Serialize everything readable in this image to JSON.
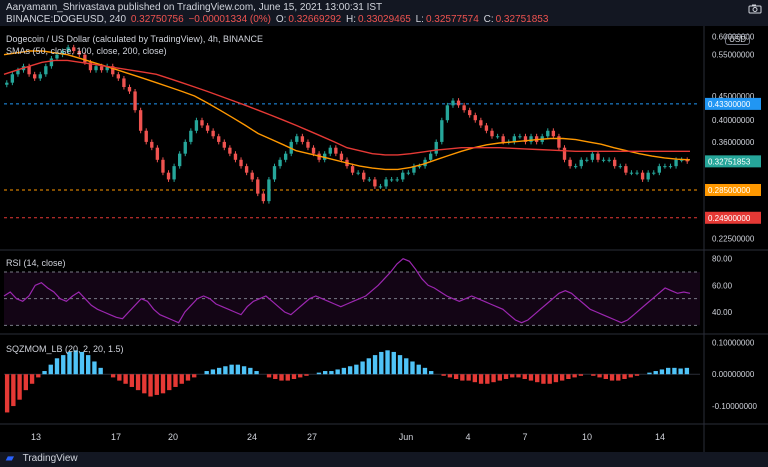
{
  "header": {
    "published": "Aaryamann_Shrivastava published on TradingView.com, June 15, 2021 13:00:31 IST",
    "symbol": "BINANCE:DOGEUSD, 240",
    "price": "0.32750756",
    "change": "−0.00001334 (0%)",
    "open_label": "O:",
    "open_val": "0.32669292",
    "high_label": "H:",
    "high_val": "0.33029465",
    "low_label": "L:",
    "low_val": "0.32577574",
    "close_label": "C:",
    "close_val": "0.32751853"
  },
  "main_legend": {
    "title": "Dogecoin / US Dollar (calculated by TradingView), 4h, BINANCE",
    "smas": "SMAs (50, close, 100, close, 200, close)"
  },
  "rsi_legend": "RSI (14, close)",
  "sqz_legend": "SQZMOM_LB (20, 2, 20, 1.5)",
  "currency_badge": "USD",
  "footer_brand": "TradingView",
  "colors": {
    "up": "#26a69a",
    "down": "#ef5350",
    "sma_orange": "#ff9800",
    "sma_red": "#e53935",
    "rsi": "#9c27b0",
    "sqz_up": "#4fc3f7",
    "sqz_down": "#e53935"
  },
  "chart_data": [
    {
      "type": "candlestick",
      "title": "Dogecoin / US Dollar (calculated by TradingView), 4h, BINANCE",
      "x_ticks": [
        "13",
        "17",
        "20",
        "24",
        "27",
        "Jun",
        "4",
        "7",
        "10",
        "14"
      ],
      "y_ticks": [
        "0.60000000",
        "0.55000000",
        "0.45000000",
        "0.40000000",
        "0.36000000",
        "0.32751853",
        "0.28500000",
        "0.24900000",
        "0.22500000"
      ],
      "y_scale": "log",
      "ylim": [
        0.215,
        0.62
      ],
      "price_labels": [
        {
          "value": 0.433,
          "text": "0.43300000",
          "color": "#2196f3"
        },
        {
          "value": 0.32751853,
          "text": "0.32751853",
          "color": "#26a69a"
        },
        {
          "value": 0.285,
          "text": "0.28500000",
          "color": "#ff9800"
        },
        {
          "value": 0.249,
          "text": "0.24900000",
          "color": "#e53935"
        }
      ],
      "h_lines": [
        {
          "value": 0.433,
          "color": "#2196f3"
        },
        {
          "value": 0.285,
          "color": "#ff9800"
        },
        {
          "value": 0.249,
          "color": "#e53935"
        }
      ],
      "close": [
        0.48,
        0.5,
        0.51,
        0.52,
        0.5,
        0.49,
        0.5,
        0.52,
        0.54,
        0.55,
        0.56,
        0.57,
        0.56,
        0.55,
        0.53,
        0.51,
        0.52,
        0.51,
        0.52,
        0.5,
        0.49,
        0.47,
        0.46,
        0.42,
        0.38,
        0.36,
        0.35,
        0.33,
        0.31,
        0.3,
        0.32,
        0.34,
        0.36,
        0.38,
        0.4,
        0.39,
        0.38,
        0.37,
        0.36,
        0.35,
        0.34,
        0.33,
        0.32,
        0.31,
        0.3,
        0.28,
        0.27,
        0.3,
        0.32,
        0.33,
        0.34,
        0.36,
        0.37,
        0.36,
        0.35,
        0.34,
        0.33,
        0.34,
        0.35,
        0.34,
        0.33,
        0.32,
        0.31,
        0.31,
        0.3,
        0.3,
        0.29,
        0.29,
        0.3,
        0.3,
        0.3,
        0.31,
        0.31,
        0.32,
        0.32,
        0.33,
        0.34,
        0.36,
        0.4,
        0.43,
        0.44,
        0.43,
        0.42,
        0.41,
        0.4,
        0.39,
        0.38,
        0.37,
        0.37,
        0.36,
        0.36,
        0.37,
        0.37,
        0.36,
        0.37,
        0.36,
        0.37,
        0.38,
        0.37,
        0.35,
        0.33,
        0.32,
        0.32,
        0.33,
        0.33,
        0.34,
        0.33,
        0.33,
        0.33,
        0.32,
        0.32,
        0.31,
        0.31,
        0.31,
        0.3,
        0.31,
        0.31,
        0.32,
        0.32,
        0.32,
        0.33,
        0.33,
        0.3275
      ],
      "series": [
        {
          "name": "SMA 50",
          "color": "#ff9800",
          "values": [
            0.55,
            0.555,
            0.56,
            0.56,
            0.555,
            0.55,
            0.54,
            0.53,
            0.52,
            0.51,
            0.5,
            0.49,
            0.48,
            0.47,
            0.46,
            0.45,
            0.435,
            0.42,
            0.405,
            0.39,
            0.375,
            0.365,
            0.355,
            0.345,
            0.34,
            0.335,
            0.33,
            0.325,
            0.32,
            0.317,
            0.315,
            0.315,
            0.318,
            0.323,
            0.33,
            0.337,
            0.344,
            0.35,
            0.355,
            0.358,
            0.36,
            0.362,
            0.364,
            0.366,
            0.366,
            0.364,
            0.36,
            0.356,
            0.35,
            0.345,
            0.34,
            0.336,
            0.333,
            0.331,
            0.33
          ]
        },
        {
          "name": "SMA 100",
          "color": "#e53935",
          "values": [
            0.5,
            0.51,
            0.52,
            0.53,
            0.535,
            0.535,
            0.53,
            0.525,
            0.52,
            0.515,
            0.51,
            0.505,
            0.5,
            0.49,
            0.48,
            0.47,
            0.46,
            0.45,
            0.44,
            0.43,
            0.42,
            0.41,
            0.4,
            0.39,
            0.38,
            0.37,
            0.36,
            0.35,
            0.345,
            0.34,
            0.338,
            0.338,
            0.34,
            0.343,
            0.346,
            0.348,
            0.35,
            0.35,
            0.35,
            0.35,
            0.349,
            0.348,
            0.347,
            0.346,
            0.345,
            0.344,
            0.344,
            0.344,
            0.344,
            0.344,
            0.344,
            0.344,
            0.344,
            0.344,
            0.344
          ]
        }
      ]
    },
    {
      "type": "line",
      "title": "RSI (14, close)",
      "y_ticks": [
        "80.00",
        "60.00",
        "40.00"
      ],
      "ylim": [
        25,
        85
      ],
      "bands": [
        30,
        50,
        70
      ],
      "values": [
        52,
        55,
        50,
        48,
        52,
        60,
        62,
        58,
        55,
        50,
        48,
        52,
        55,
        50,
        45,
        42,
        40,
        38,
        36,
        35,
        40,
        45,
        50,
        48,
        42,
        38,
        36,
        34,
        32,
        40,
        45,
        50,
        52,
        50,
        46,
        44,
        42,
        40,
        38,
        44,
        48,
        50,
        52,
        48,
        44,
        40,
        38,
        42,
        46,
        50,
        52,
        50,
        48,
        46,
        44,
        46,
        48,
        50,
        52,
        56,
        60,
        65,
        70,
        76,
        80,
        78,
        72,
        65,
        60,
        58,
        55,
        52,
        50,
        48,
        50,
        52,
        50,
        48,
        46,
        44,
        42,
        38,
        34,
        32,
        34,
        38,
        42,
        46,
        50,
        54,
        56,
        54,
        50,
        46,
        42,
        40,
        38,
        36,
        34,
        32,
        34,
        38,
        42,
        46,
        50,
        54,
        58,
        56,
        54,
        55,
        54
      ]
    },
    {
      "type": "bar",
      "title": "SQZMOM_LB (20, 2, 20, 1.5)",
      "y_ticks": [
        "0.10000000",
        "0.00000000",
        "-0.10000000"
      ],
      "ylim": [
        -0.15,
        0.12
      ],
      "values": [
        -0.12,
        -0.1,
        -0.08,
        -0.05,
        -0.03,
        -0.01,
        0.01,
        0.03,
        0.05,
        0.06,
        0.07,
        0.075,
        0.07,
        0.06,
        0.04,
        0.02,
        0.0,
        -0.01,
        -0.02,
        -0.03,
        -0.04,
        -0.05,
        -0.06,
        -0.07,
        -0.065,
        -0.06,
        -0.05,
        -0.04,
        -0.03,
        -0.02,
        -0.01,
        0.0,
        0.01,
        0.015,
        0.02,
        0.025,
        0.03,
        0.03,
        0.025,
        0.02,
        0.01,
        0.0,
        -0.01,
        -0.015,
        -0.02,
        -0.02,
        -0.015,
        -0.01,
        -0.005,
        0.0,
        0.005,
        0.01,
        0.01,
        0.015,
        0.02,
        0.025,
        0.03,
        0.04,
        0.05,
        0.06,
        0.07,
        0.075,
        0.07,
        0.06,
        0.05,
        0.04,
        0.03,
        0.02,
        0.01,
        0.0,
        -0.005,
        -0.01,
        -0.015,
        -0.02,
        -0.02,
        -0.025,
        -0.03,
        -0.03,
        -0.025,
        -0.02,
        -0.015,
        -0.01,
        -0.01,
        -0.015,
        -0.02,
        -0.025,
        -0.03,
        -0.03,
        -0.025,
        -0.02,
        -0.015,
        -0.01,
        -0.005,
        0.0,
        -0.005,
        -0.01,
        -0.015,
        -0.02,
        -0.02,
        -0.015,
        -0.01,
        -0.005,
        0.0,
        0.005,
        0.01,
        0.015,
        0.02,
        0.02,
        0.018,
        0.02
      ]
    }
  ]
}
